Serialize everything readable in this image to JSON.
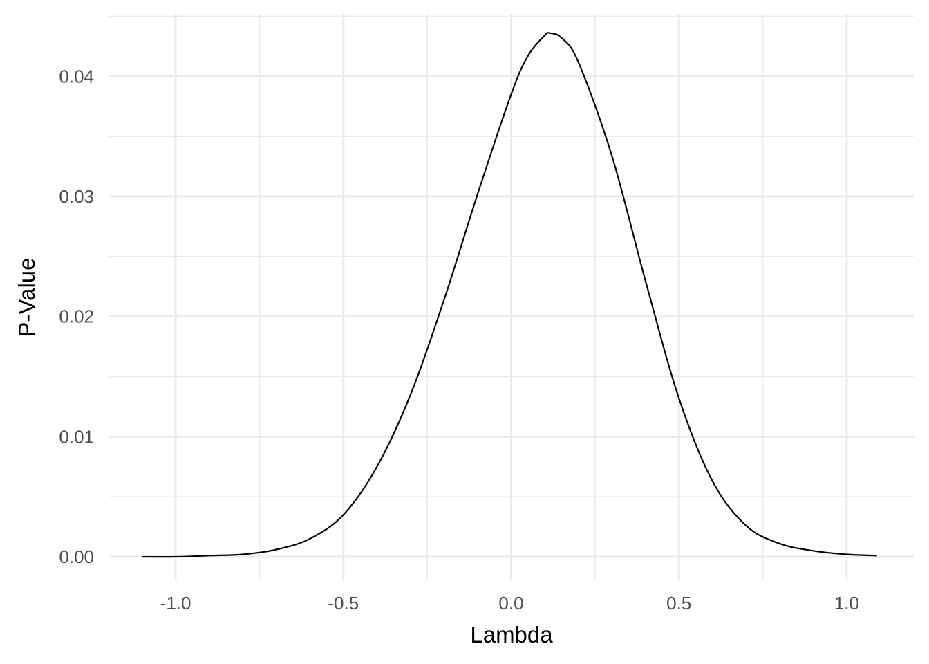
{
  "chart_data": {
    "type": "line",
    "title": "",
    "xlabel": "Lambda",
    "ylabel": "P-Value",
    "xlim": [
      -1.2,
      1.2
    ],
    "ylim": [
      -0.0019,
      0.0452
    ],
    "x_ticks": [
      -1.0,
      -0.5,
      0.0,
      0.5,
      1.0
    ],
    "x_tick_labels": [
      "-1.0",
      "-0.5",
      "0.0",
      "0.5",
      "1.0"
    ],
    "x_minor_ticks": [
      -0.75,
      -0.25,
      0.25,
      0.75
    ],
    "y_ticks": [
      0.0,
      0.01,
      0.02,
      0.03,
      0.04
    ],
    "y_tick_labels": [
      "0.00",
      "0.01",
      "0.02",
      "0.03",
      "0.04"
    ],
    "y_minor_ticks": [
      0.005,
      0.015,
      0.025,
      0.035,
      0.045
    ],
    "grid": true,
    "legend": "none",
    "series": [
      {
        "color": "#000000",
        "x": [
          -1.1,
          -1.0,
          -0.9,
          -0.8,
          -0.7,
          -0.6,
          -0.5,
          -0.4,
          -0.3,
          -0.2,
          -0.1,
          0.0,
          0.05,
          0.1,
          0.115,
          0.15,
          0.2,
          0.3,
          0.4,
          0.5,
          0.6,
          0.7,
          0.8,
          0.9,
          1.0,
          1.09
        ],
        "y": [
          0.0,
          0.0,
          0.0001,
          0.0002,
          0.0006,
          0.0015,
          0.0035,
          0.0075,
          0.0135,
          0.0214,
          0.0302,
          0.0385,
          0.0417,
          0.0434,
          0.0436,
          0.0432,
          0.0412,
          0.0334,
          0.023,
          0.0132,
          0.0063,
          0.0026,
          0.0011,
          0.0005,
          0.0002,
          0.0001
        ]
      }
    ]
  }
}
